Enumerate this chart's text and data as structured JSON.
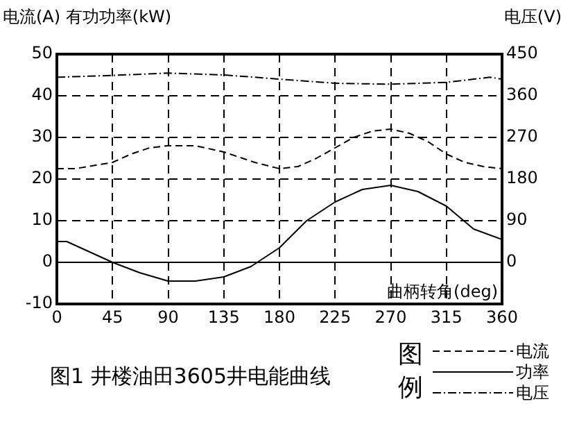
{
  "chart_data": {
    "type": "line",
    "title": "图1 井楼油田3605井电能曲线",
    "xlabel": "曲柄转角(deg)",
    "ylabel": "电流(A) 有功功率(kW)",
    "y2label": "电压(V)",
    "legend_title": "图例",
    "x": [
      0,
      15,
      45,
      60,
      75,
      90,
      112,
      135,
      160,
      180,
      195,
      210,
      225,
      240,
      255,
      270,
      285,
      300,
      315,
      330,
      345,
      360
    ],
    "series": [
      {
        "name": "电流",
        "color": "#000000",
        "line_style": "dashed",
        "values": [
          22.5,
          22.5,
          24,
          26,
          27.5,
          28,
          28,
          26.5,
          24,
          22.5,
          23,
          25,
          27.5,
          30,
          31.5,
          32,
          31,
          29,
          26,
          24,
          23,
          22.5
        ]
      },
      {
        "name": "功率",
        "color": "#000000",
        "line_style": "solid",
        "x": [
          0,
          8,
          45,
          67,
          90,
          112,
          135,
          157,
          180,
          202,
          225,
          247,
          270,
          292,
          315,
          337,
          360
        ],
        "values": [
          5,
          5,
          0,
          -2.5,
          -4.5,
          -4.5,
          -3.5,
          -1,
          3.5,
          10,
          14.5,
          17.5,
          18.5,
          17,
          13.5,
          8,
          5.5
        ]
      },
      {
        "name": "电压",
        "color": "#000000",
        "line_style": "dotted",
        "axis": "y2",
        "x": [
          0,
          45,
          90,
          135,
          180,
          225,
          270,
          315,
          350,
          360
        ],
        "values": [
          400,
          404,
          409,
          405,
          396,
          387,
          385,
          389,
          400,
          396
        ]
      }
    ],
    "xlim": [
      0,
      360
    ],
    "xticks": [
      0,
      45,
      90,
      135,
      180,
      225,
      270,
      315,
      360
    ],
    "ylim": [
      -10,
      50
    ],
    "yticks": [
      -10,
      0,
      10,
      20,
      30,
      40,
      50
    ],
    "y2lim": [
      -90,
      450
    ],
    "y2ticks": [
      0,
      90,
      180,
      270,
      360,
      450
    ],
    "ref_lines": [
      {
        "axis": "y",
        "value": 0,
        "color": "#000000",
        "line_style": "solid"
      }
    ],
    "grid": true,
    "legend": "bottom right",
    "marker": "none"
  }
}
